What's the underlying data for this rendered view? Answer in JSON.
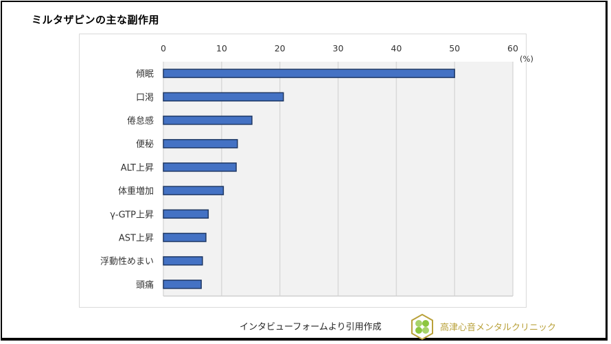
{
  "title": "ミルタザピンの主な副作用",
  "source_note": "インタビューフォームより引用作成",
  "clinic_name": "高津心音メンタルクリニック",
  "logo_icon": "clover-hexagon-logo",
  "colors": {
    "bar_fill": "#4472c4",
    "bar_stroke": "#1f3864",
    "plot_bg": "#f2f2f2",
    "grid": "#d9d9d9",
    "clinic_text": "#b9a13a",
    "logo_green": "#8cc63f"
  },
  "chart_data": {
    "type": "bar",
    "orientation": "horizontal",
    "title": "ミルタザピンの主な副作用",
    "xlabel": "",
    "unit_label": "(%)",
    "xlim": [
      0,
      60
    ],
    "ticks": [
      0,
      10,
      20,
      30,
      40,
      50,
      60
    ],
    "tick_labels": [
      "0",
      "10",
      "20",
      "30",
      "40",
      "50",
      "60"
    ],
    "x_axis_position": "top",
    "grid": true,
    "categories": [
      "傾眠",
      "口渇",
      "倦怠感",
      "便秘",
      "ALT上昇",
      "体重増加",
      "γ-GTP上昇",
      "AST上昇",
      "浮動性めまい",
      "頭痛"
    ],
    "values": [
      50.0,
      20.6,
      15.2,
      12.7,
      12.5,
      10.3,
      7.7,
      7.3,
      6.7,
      6.5
    ]
  }
}
